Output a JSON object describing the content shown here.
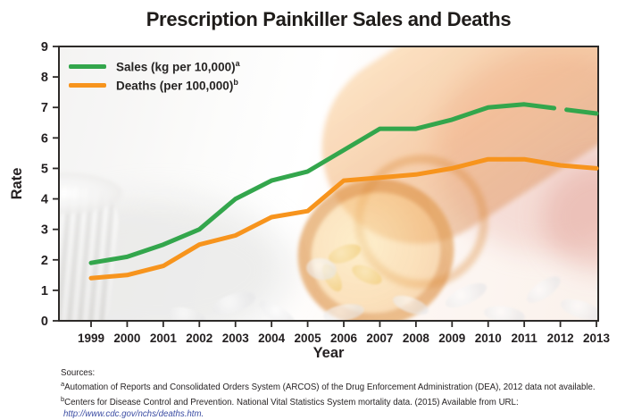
{
  "title": "Prescription Painkiller Sales and Deaths",
  "colors": {
    "sales_line": "#33a64c",
    "deaths_line": "#f7941d",
    "ink": "#2d2a28",
    "text": "#231f20",
    "link": "#3c4da3"
  },
  "legend": {
    "items": [
      {
        "label": "Sales (kg per 10,000)",
        "sup": "a",
        "color": "#33a64c"
      },
      {
        "label": "Deaths (per 100,000)",
        "sup": "b",
        "color": "#f7941d"
      }
    ]
  },
  "sources": {
    "heading": "Sources:",
    "notes": [
      {
        "sup": "a",
        "text": "Automation of Reports and Consolidated Orders System (ARCOS) of the Drug Enforcement Administration (DEA), 2012 data not available."
      },
      {
        "sup": "b",
        "text": "Centers for Disease Control and Prevention. National Vital Statistics System mortality data. (2015) Available from URL:"
      }
    ],
    "url": "http://www.cdc.gov/nchs/deaths.htm."
  },
  "chart_data": {
    "type": "line",
    "title": "Prescription Painkiller Sales and Deaths",
    "xlabel": "Year",
    "ylabel": "Rate",
    "x": [
      1999,
      2000,
      2001,
      2002,
      2003,
      2004,
      2005,
      2006,
      2007,
      2008,
      2009,
      2010,
      2011,
      2012,
      2013
    ],
    "y_ticks": [
      0,
      1,
      2,
      3,
      4,
      5,
      6,
      7,
      8,
      9
    ],
    "ylim": [
      0,
      9
    ],
    "grid": false,
    "legend_position": "top-left",
    "series": [
      {
        "name": "Sales (kg per 10,000)",
        "color": "#33a64c",
        "values": [
          1.9,
          2.1,
          2.5,
          3.0,
          4.0,
          4.6,
          4.9,
          5.6,
          6.3,
          6.3,
          6.6,
          7.0,
          7.1,
          null,
          6.8
        ],
        "note": "2012 data not available - line drawn with a gap at 2012"
      },
      {
        "name": "Deaths (per 100,000)",
        "color": "#f7941d",
        "values": [
          1.4,
          1.5,
          1.8,
          2.5,
          2.8,
          3.4,
          3.6,
          4.6,
          4.7,
          4.8,
          5.0,
          5.3,
          5.3,
          5.1,
          5.0
        ]
      }
    ]
  }
}
